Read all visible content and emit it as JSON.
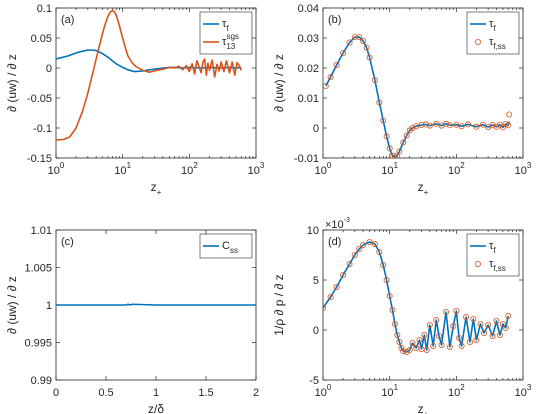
{
  "colors": {
    "blue": "#0072BD",
    "orange": "#D95319",
    "axis": "#262626"
  },
  "chart_data": [
    {
      "id": "a",
      "type": "line",
      "panel_label": "(a)",
      "xscale": "log",
      "xlim": [
        1,
        1000
      ],
      "ylim": [
        -0.15,
        0.1
      ],
      "xticks": [
        1,
        10,
        100,
        1000
      ],
      "xtick_labels": [
        "10^0",
        "10^1",
        "10^2",
        "10^3"
      ],
      "yticks": [
        -0.15,
        -0.1,
        -0.05,
        0,
        0.05,
        0.1
      ],
      "ytick_labels": [
        "-0.15",
        "-0.1",
        "-0.05",
        "0",
        "0.05",
        "0.1"
      ],
      "xlabel": "z_+",
      "ylabel": "∂ (uw) / ∂ z",
      "legend_position": "top-right",
      "series": [
        {
          "name": "τ_f",
          "color": "blue",
          "x": [
            1,
            1.5,
            2,
            2.5,
            3,
            3.5,
            4,
            5,
            6,
            7,
            8,
            10,
            12,
            15,
            20,
            25,
            30,
            40,
            50,
            60,
            80,
            100,
            150,
            200,
            300,
            400,
            500,
            600
          ],
          "y": [
            0.015,
            0.02,
            0.025,
            0.028,
            0.03,
            0.03,
            0.029,
            0.024,
            0.018,
            0.012,
            0.007,
            0.001,
            -0.003,
            -0.006,
            -0.005,
            -0.003,
            -0.002,
            0.0,
            0.001,
            0.001,
            0.0,
            0.001,
            0.0,
            0.001,
            0.0,
            0.001,
            0.0,
            0.001
          ]
        },
        {
          "name": "τ_13^sgs",
          "color": "orange",
          "x": [
            1,
            1.3,
            1.6,
            2,
            2.5,
            3,
            3.5,
            4,
            4.5,
            5,
            5.5,
            6,
            6.5,
            7,
            7.5,
            8,
            8.5,
            9,
            10,
            11,
            12,
            14,
            16,
            18,
            20,
            25,
            30,
            35,
            40,
            50,
            60,
            70,
            80,
            90,
            100,
            110,
            120,
            130,
            140,
            150,
            160,
            170,
            180,
            190,
            200,
            220,
            240,
            260,
            280,
            300,
            330,
            360,
            400,
            440,
            480,
            520,
            560,
            600
          ],
          "y": [
            -0.12,
            -0.119,
            -0.115,
            -0.1,
            -0.072,
            -0.042,
            -0.012,
            0.015,
            0.038,
            0.058,
            0.074,
            0.086,
            0.093,
            0.096,
            0.094,
            0.088,
            0.079,
            0.069,
            0.05,
            0.033,
            0.02,
            0.008,
            0.002,
            -0.001,
            -0.004,
            -0.007,
            -0.005,
            -0.003,
            -0.002,
            0.001,
            0.0,
            0.003,
            -0.003,
            0.004,
            -0.006,
            0.007,
            -0.01,
            0.012,
            0.002,
            -0.008,
            0.01,
            0.015,
            -0.012,
            0.008,
            -0.004,
            0.013,
            -0.015,
            0.006,
            -0.005,
            0.01,
            -0.006,
            0.012,
            -0.008,
            0.01,
            -0.012,
            0.009,
            0.004,
            -0.004
          ]
        }
      ]
    },
    {
      "id": "b",
      "type": "line",
      "panel_label": "(b)",
      "xscale": "log",
      "xlim": [
        1,
        1000
      ],
      "ylim": [
        -0.01,
        0.04
      ],
      "xticks": [
        1,
        10,
        100,
        1000
      ],
      "xtick_labels": [
        "10^0",
        "10^1",
        "10^2",
        "10^3"
      ],
      "yticks": [
        -0.01,
        0,
        0.01,
        0.02,
        0.03,
        0.04
      ],
      "ytick_labels": [
        "-0.01",
        "0",
        "0.01",
        "0.02",
        "0.03",
        "0.04"
      ],
      "xlabel": "z_+",
      "ylabel": "∂ (uw) / ∂ z",
      "legend_position": "top-right",
      "series": [
        {
          "name": "τ_f",
          "color": "blue",
          "style": "line",
          "x": [
            1.1,
            1.3,
            1.6,
            2,
            2.5,
            3,
            3.5,
            4,
            4.5,
            5,
            6,
            7,
            8,
            9,
            10,
            11,
            12,
            13,
            14,
            16,
            18,
            20,
            22,
            25,
            30,
            35,
            40,
            50,
            60,
            70,
            80,
            100,
            120,
            150,
            200,
            250,
            300,
            350,
            400,
            450,
            500,
            550,
            600,
            620
          ],
          "y": [
            0.014,
            0.017,
            0.021,
            0.025,
            0.0285,
            0.0303,
            0.0303,
            0.029,
            0.0268,
            0.0235,
            0.016,
            0.0085,
            0.0025,
            -0.0028,
            -0.0068,
            -0.0092,
            -0.0098,
            -0.0092,
            -0.0078,
            -0.0048,
            -0.0025,
            -0.0008,
            0.0,
            0.0006,
            0.001,
            0.0012,
            0.0008,
            0.0014,
            0.0008,
            0.0014,
            0.0009,
            0.0011,
            0.0006,
            0.0012,
            0.0004,
            0.0011,
            0.0003,
            0.001,
            0.0004,
            0.0011,
            0.0002,
            0.0013,
            0.0009,
            0.0022
          ]
        },
        {
          "name": "τ_f,ss",
          "color": "orange",
          "style": "markers",
          "x": [
            1.1,
            1.3,
            1.6,
            2,
            2.5,
            3,
            3.5,
            4,
            4.5,
            5,
            6,
            7,
            8,
            9,
            10,
            11,
            12,
            13,
            14,
            16,
            18,
            20,
            22,
            25,
            30,
            35,
            40,
            50,
            60,
            70,
            80,
            100,
            120,
            150,
            200,
            250,
            300,
            350,
            400,
            450,
            500,
            550,
            600,
            620
          ],
          "y": [
            0.014,
            0.017,
            0.021,
            0.025,
            0.0285,
            0.0303,
            0.0303,
            0.029,
            0.0268,
            0.0235,
            0.016,
            0.0085,
            0.0025,
            -0.0028,
            -0.0068,
            -0.0092,
            -0.0098,
            -0.0092,
            -0.0078,
            -0.0048,
            -0.0025,
            -0.0008,
            0.0,
            0.0006,
            0.001,
            0.0012,
            0.0008,
            0.0014,
            0.0008,
            0.0014,
            0.0009,
            0.0011,
            0.0006,
            0.0012,
            0.0004,
            0.0011,
            0.0003,
            0.001,
            0.0004,
            0.0011,
            0.0002,
            0.0013,
            0.0009,
            0.0045
          ]
        }
      ]
    },
    {
      "id": "c",
      "type": "line",
      "panel_label": "(c)",
      "xscale": "linear",
      "xlim": [
        0,
        2
      ],
      "ylim": [
        0.99,
        1.01
      ],
      "xticks": [
        0,
        0.5,
        1,
        1.5,
        2
      ],
      "xtick_labels": [
        "0",
        "0.5",
        "1",
        "1.5",
        "2"
      ],
      "yticks": [
        0.99,
        0.995,
        1,
        1.005,
        1.01
      ],
      "ytick_labels": [
        "0.99",
        "0.995",
        "1",
        "1.005",
        "1.01"
      ],
      "xlabel": "z/δ",
      "ylabel": "∂ (uw) / ∂ z",
      "legend_position": "top-right",
      "series": [
        {
          "name": "C_ss",
          "color": "blue",
          "x": [
            0,
            0.25,
            0.5,
            0.7,
            0.72,
            0.74,
            0.76,
            1.0,
            1.25,
            1.5,
            1.75,
            2.0
          ],
          "y": [
            1.0,
            1.0,
            1.0,
            1.0,
            1.0001,
            1.0,
            1.0001,
            1.0,
            1.0,
            1.0,
            1.0,
            1.0
          ]
        }
      ]
    },
    {
      "id": "d",
      "type": "line",
      "panel_label": "(d)",
      "xscale": "log",
      "xlim": [
        1,
        1000
      ],
      "ylim": [
        -5,
        10
      ],
      "y_multiplier": "×10^-3",
      "xticks": [
        1,
        10,
        100,
        1000
      ],
      "xtick_labels": [
        "10^0",
        "10^1",
        "10^2",
        "10^3"
      ],
      "yticks": [
        -5,
        0,
        5,
        10
      ],
      "ytick_labels": [
        "-5",
        "0",
        "5",
        "10"
      ],
      "xlabel": "z_+",
      "ylabel": "1/ρ ∂ p / ∂ z",
      "legend_position": "top-right",
      "series": [
        {
          "name": "τ_f",
          "color": "blue",
          "style": "line",
          "x": [
            1.0,
            1.3,
            1.6,
            2,
            2.5,
            3,
            3.5,
            4,
            5,
            6,
            7,
            8,
            9,
            10,
            11,
            12,
            13,
            14,
            15,
            16,
            18,
            20,
            22,
            25,
            28,
            30,
            33,
            36,
            40,
            45,
            50,
            55,
            60,
            70,
            80,
            90,
            100,
            110,
            120,
            140,
            160,
            180,
            200,
            230,
            260,
            300,
            350,
            400,
            450,
            500,
            550,
            600
          ],
          "y": [
            2.2,
            3.3,
            4.3,
            5.5,
            6.6,
            7.5,
            8.1,
            8.5,
            8.8,
            8.6,
            7.8,
            6.5,
            5.0,
            3.4,
            2.0,
            0.6,
            -0.5,
            -1.2,
            -1.8,
            -2.1,
            -2.2,
            -2.0,
            -1.3,
            -1.8,
            -1.0,
            -1.9,
            -0.5,
            -2.0,
            0.5,
            -1.6,
            1.0,
            -0.6,
            -1.5,
            1.8,
            -1.7,
            0.4,
            1.9,
            -0.8,
            -1.6,
            1.3,
            -1.2,
            1.1,
            -1.0,
            0.6,
            -0.3,
            0.5,
            -0.6,
            0.9,
            -0.5,
            0.6,
            0.2,
            1.4
          ]
        },
        {
          "name": "τ_f,ss",
          "color": "orange",
          "style": "markers",
          "x": [
            1.0,
            1.3,
            1.6,
            2,
            2.5,
            3,
            3.5,
            4,
            5,
            6,
            7,
            8,
            9,
            10,
            11,
            12,
            13,
            14,
            15,
            16,
            18,
            20,
            22,
            25,
            28,
            30,
            33,
            36,
            40,
            45,
            50,
            55,
            60,
            70,
            80,
            90,
            100,
            110,
            120,
            140,
            160,
            180,
            200,
            230,
            260,
            300,
            350,
            400,
            450,
            500,
            550,
            600
          ],
          "y": [
            2.2,
            3.3,
            4.3,
            5.5,
            6.6,
            7.5,
            8.1,
            8.5,
            8.8,
            8.6,
            7.8,
            6.5,
            5.0,
            3.4,
            2.0,
            0.6,
            -0.5,
            -1.2,
            -1.8,
            -2.1,
            -2.2,
            -2.0,
            -1.3,
            -1.8,
            -1.0,
            -1.9,
            -0.5,
            -2.0,
            0.5,
            -1.6,
            1.0,
            -0.6,
            -1.5,
            1.8,
            -1.7,
            0.4,
            1.9,
            -0.8,
            -1.6,
            1.3,
            -1.2,
            1.1,
            -1.0,
            0.6,
            -0.3,
            0.5,
            -0.6,
            0.9,
            -0.5,
            0.6,
            0.2,
            1.4
          ]
        }
      ]
    }
  ]
}
